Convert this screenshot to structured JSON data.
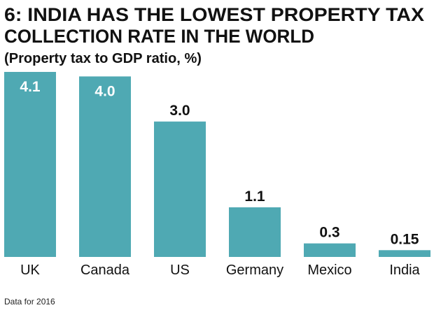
{
  "chart_data": {
    "type": "bar",
    "title": "6: INDIA HAS THE LOWEST PROPERTY TAX COLLECTION RATE IN THE WORLD",
    "title_lines": [
      "6: INDIA HAS THE LOWEST PROPERTY TAX",
      "COLLECTION RATE IN THE WORLD"
    ],
    "subtitle": "(Property tax to GDP ratio, %)",
    "categories": [
      "UK",
      "Canada",
      "US",
      "Germany",
      "Mexico",
      "India"
    ],
    "values": [
      4.1,
      4.0,
      3.0,
      1.1,
      0.3,
      0.15
    ],
    "data_labels": [
      "4.1",
      "4.0",
      "3.0",
      "1.1",
      "0.3",
      "0.15"
    ],
    "xlabel": "",
    "ylabel": "",
    "ylim": [
      0,
      4.1
    ],
    "grid": false,
    "footnote": "Data for 2016",
    "colors": {
      "bar": "#4fa9b3",
      "label_inside": "#ffffff",
      "label_outside": "#111111"
    }
  }
}
